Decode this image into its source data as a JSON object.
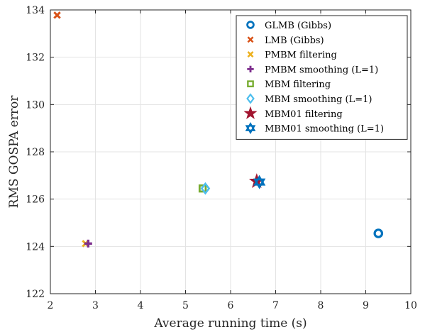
{
  "chart_data": {
    "type": "scatter",
    "xlabel": "Average running time (s)",
    "ylabel": "RMS GOSPA error",
    "xlim": [
      2,
      10
    ],
    "ylim": [
      122,
      134
    ],
    "xticks": [
      "2",
      "3",
      "4",
      "5",
      "6",
      "7",
      "8",
      "9",
      "10"
    ],
    "yticks": [
      "122",
      "124",
      "126",
      "128",
      "130",
      "132",
      "134"
    ],
    "grid": true,
    "legend_position": "top-right",
    "series": [
      {
        "name": "GLMB (Gibbs)",
        "marker": "circle",
        "color": "#0072BD",
        "x": 9.28,
        "y": 124.55
      },
      {
        "name": "LMB (Gibbs)",
        "marker": "x",
        "color": "#D95319",
        "x": 2.15,
        "y": 133.78
      },
      {
        "name": "PMBM filtering",
        "marker": "x",
        "color": "#EDB120",
        "x": 2.78,
        "y": 124.12
      },
      {
        "name": "PMBM smoothing (L=1)",
        "marker": "plus",
        "color": "#7E2F8E",
        "x": 2.84,
        "y": 124.12
      },
      {
        "name": "MBM filtering",
        "marker": "square",
        "color": "#77AC30",
        "x": 5.38,
        "y": 126.45
      },
      {
        "name": "MBM smoothing (L=1)",
        "marker": "diamond",
        "color": "#4DBEEE",
        "x": 5.44,
        "y": 126.45
      },
      {
        "name": "MBM01 filtering",
        "marker": "star",
        "color": "#A2142F",
        "x": 6.58,
        "y": 126.75
      },
      {
        "name": "MBM01 smoothing (L=1)",
        "marker": "hexagram",
        "color": "#0072BD",
        "x": 6.64,
        "y": 126.72
      }
    ]
  }
}
